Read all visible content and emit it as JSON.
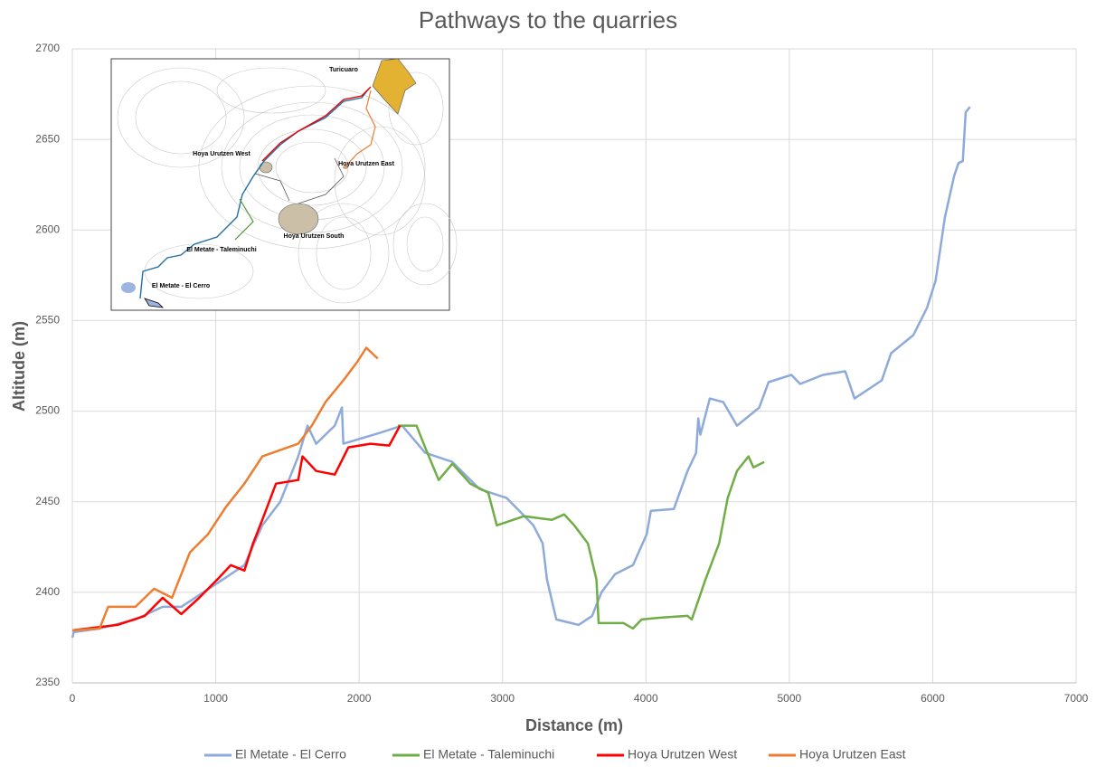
{
  "chart_data": {
    "type": "line",
    "title": "Pathways to the quarries",
    "x_label": "Distance (m)",
    "y_label": "Altitude (m)",
    "xlim": [
      0,
      7000
    ],
    "xticks": [
      0,
      1000,
      2000,
      3000,
      4000,
      5000,
      6000,
      7000
    ],
    "ylim": [
      2350,
      2700
    ],
    "yticks": [
      2350,
      2400,
      2450,
      2500,
      2550,
      2600,
      2650,
      2700
    ],
    "grid": true,
    "legend": "bottom",
    "annotations": [
      "Turicuaro",
      "Hoya Urutzen West",
      "Hoya Urutzen East",
      "Hoya Urutzen South",
      "El Metate - Taleminuchi",
      "El Metate - El Cerro"
    ],
    "series": [
      {
        "name": "El Metate - El Cerro",
        "color": "#8eaadb",
        "x": [
          0,
          10,
          190,
          440,
          630,
          760,
          1010,
          1200,
          1325,
          1450,
          1575,
          1640,
          1700,
          1830,
          1880,
          1890,
          2145,
          2300,
          2460,
          2650,
          2840,
          3030,
          3215,
          3280,
          3310,
          3375,
          3530,
          3625,
          3690,
          3785,
          3910,
          4005,
          4035,
          4195,
          4290,
          4350,
          4365,
          4380,
          4445,
          4540,
          4635,
          4790,
          4855,
          5015,
          5075,
          5235,
          5390,
          5455,
          5645,
          5710,
          5865,
          5960,
          6020,
          6085,
          6150,
          6180,
          6210,
          6230,
          6260
        ],
        "values": [
          2375,
          2378,
          2380,
          2385,
          2392,
          2392,
          2405,
          2415,
          2437,
          2450,
          2475,
          2492,
          2482,
          2492,
          2502,
          2482,
          2488,
          2492,
          2477,
          2472,
          2457,
          2452,
          2437,
          2427,
          2407,
          2385,
          2382,
          2387,
          2400,
          2410,
          2415,
          2432,
          2445,
          2446,
          2467,
          2477,
          2496,
          2487,
          2507,
          2505,
          2492,
          2502,
          2516,
          2520,
          2515,
          2520,
          2522,
          2507,
          2517,
          2532,
          2542,
          2557,
          2572,
          2607,
          2630,
          2637,
          2638,
          2665,
          2668
        ]
      },
      {
        "name": "El Metate - Taleminuchi",
        "color": "#70ad47",
        "x": [
          2270,
          2400,
          2460,
          2555,
          2650,
          2775,
          2900,
          2960,
          3150,
          3345,
          3430,
          3500,
          3595,
          3655,
          3670,
          3845,
          3910,
          3970,
          4100,
          4290,
          4320,
          4415,
          4510,
          4570,
          4635,
          4715,
          4750,
          4825
        ],
        "values": [
          2492,
          2492,
          2480,
          2462,
          2471,
          2460,
          2455,
          2437,
          2442,
          2440,
          2443,
          2437,
          2427,
          2407,
          2383,
          2383,
          2380,
          2385,
          2386,
          2387,
          2385,
          2407,
          2427,
          2452,
          2467,
          2475,
          2469,
          2472
        ]
      },
      {
        "name": "Hoya Urutzen West",
        "color": "#ff0000",
        "x": [
          0,
          315,
          505,
          630,
          760,
          885,
          1010,
          1105,
          1200,
          1260,
          1325,
          1420,
          1575,
          1605,
          1700,
          1830,
          1925,
          2080,
          2210,
          2285
        ],
        "values": [
          2379,
          2382,
          2387,
          2397,
          2388,
          2397,
          2407,
          2415,
          2412,
          2427,
          2440,
          2460,
          2462,
          2475,
          2467,
          2465,
          2480,
          2482,
          2481,
          2492
        ]
      },
      {
        "name": "Hoya Urutzen East",
        "color": "#ed7d31",
        "x": [
          0,
          190,
          250,
          440,
          570,
          695,
          820,
          945,
          1070,
          1200,
          1325,
          1575,
          1670,
          1765,
          1890,
          1985,
          2050,
          2130
        ],
        "values": [
          2379,
          2380,
          2392,
          2392,
          2402,
          2397,
          2422,
          2432,
          2447,
          2460,
          2475,
          2482,
          2492,
          2505,
          2517,
          2527,
          2535,
          2529
        ]
      }
    ]
  }
}
